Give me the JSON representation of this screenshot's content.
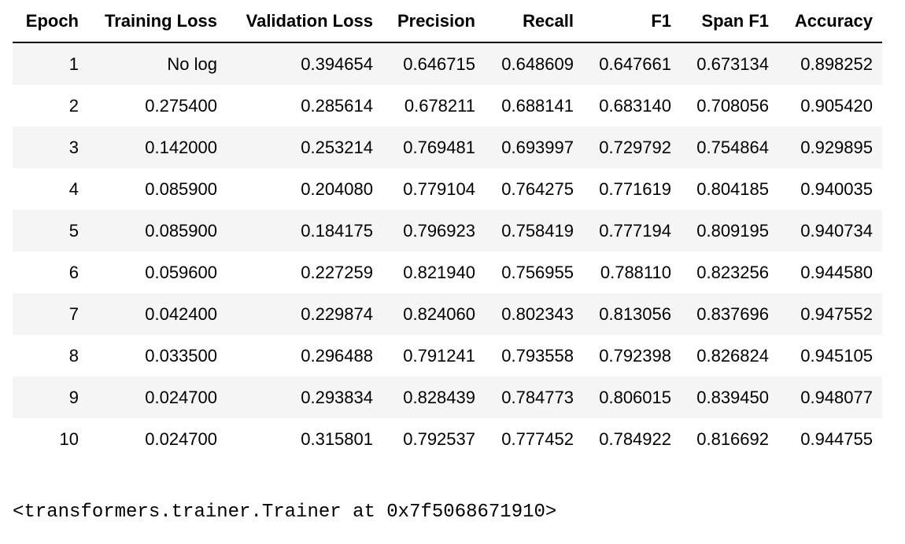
{
  "results_table": {
    "columns": [
      "Epoch",
      "Training Loss",
      "Validation Loss",
      "Precision",
      "Recall",
      "F1",
      "Span F1",
      "Accuracy"
    ],
    "rows": [
      [
        "1",
        "No log",
        "0.394654",
        "0.646715",
        "0.648609",
        "0.647661",
        "0.673134",
        "0.898252"
      ],
      [
        "2",
        "0.275400",
        "0.285614",
        "0.678211",
        "0.688141",
        "0.683140",
        "0.708056",
        "0.905420"
      ],
      [
        "3",
        "0.142000",
        "0.253214",
        "0.769481",
        "0.693997",
        "0.729792",
        "0.754864",
        "0.929895"
      ],
      [
        "4",
        "0.085900",
        "0.204080",
        "0.779104",
        "0.764275",
        "0.771619",
        "0.804185",
        "0.940035"
      ],
      [
        "5",
        "0.085900",
        "0.184175",
        "0.796923",
        "0.758419",
        "0.777194",
        "0.809195",
        "0.940734"
      ],
      [
        "6",
        "0.059600",
        "0.227259",
        "0.821940",
        "0.756955",
        "0.788110",
        "0.823256",
        "0.944580"
      ],
      [
        "7",
        "0.042400",
        "0.229874",
        "0.824060",
        "0.802343",
        "0.813056",
        "0.837696",
        "0.947552"
      ],
      [
        "8",
        "0.033500",
        "0.296488",
        "0.791241",
        "0.793558",
        "0.792398",
        "0.826824",
        "0.945105"
      ],
      [
        "9",
        "0.024700",
        "0.293834",
        "0.828439",
        "0.784773",
        "0.806015",
        "0.839450",
        "0.948077"
      ],
      [
        "10",
        "0.024700",
        "0.315801",
        "0.792537",
        "0.777452",
        "0.784922",
        "0.816692",
        "0.944755"
      ]
    ]
  },
  "output_repr": "<transformers.trainer.Trainer at 0x7f5068671910>"
}
